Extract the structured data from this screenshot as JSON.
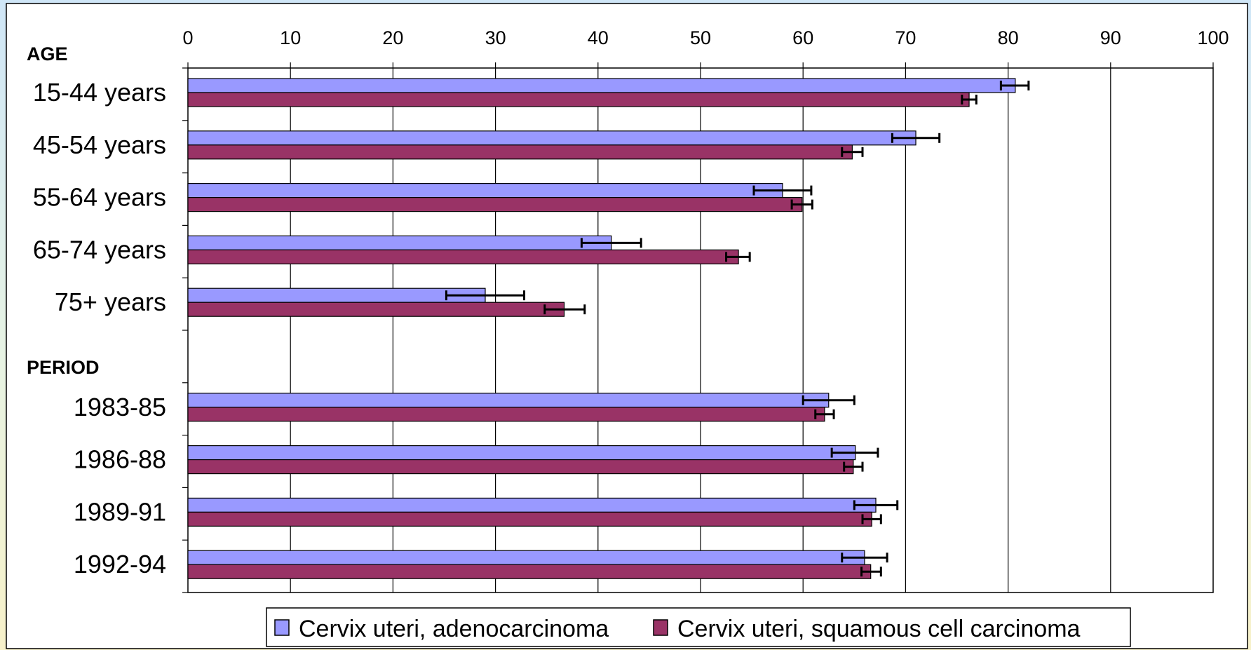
{
  "chart_data": {
    "type": "bar",
    "orientation": "horizontal",
    "x_axis": {
      "min": 0,
      "max": 100,
      "ticks": [
        "0",
        "10",
        "20",
        "30",
        "40",
        "50",
        "60",
        "70",
        "80",
        "90",
        "100"
      ],
      "position": "top",
      "grid": true
    },
    "groups": [
      {
        "label": "AGE",
        "categories": [
          "15-44 years",
          "45-54 years",
          "55-64 years",
          "65-74 years",
          "75+ years"
        ]
      },
      {
        "label": "PERIOD",
        "categories": [
          "1983-85",
          "1986-88",
          "1989-91",
          "1992-94"
        ]
      }
    ],
    "categories": [
      "15-44 years",
      "45-54 years",
      "55-64 years",
      "65-74 years",
      "75+ years",
      "1983-85",
      "1986-88",
      "1989-91",
      "1992-94"
    ],
    "series": [
      {
        "name": "Cervix uteri, adenocarcinoma",
        "color": "#9999ff",
        "values": [
          80.7,
          71.0,
          58.0,
          41.3,
          29.0,
          62.5,
          65.1,
          67.1,
          66.0
        ],
        "error_low": [
          79.3,
          68.7,
          55.2,
          38.4,
          25.2,
          60.0,
          62.8,
          65.0,
          63.8
        ],
        "error_high": [
          82.0,
          73.3,
          60.8,
          44.2,
          32.8,
          65.0,
          67.3,
          69.2,
          68.2
        ]
      },
      {
        "name": "Cervix uteri, squamous cell carcinoma",
        "color": "#993366",
        "values": [
          76.2,
          64.8,
          59.9,
          53.7,
          36.7,
          62.1,
          64.9,
          66.7,
          66.6
        ],
        "error_low": [
          75.5,
          63.8,
          58.9,
          52.5,
          34.8,
          61.2,
          64.0,
          65.8,
          65.7
        ],
        "error_high": [
          76.9,
          65.8,
          60.9,
          54.8,
          38.7,
          63.0,
          65.8,
          67.6,
          67.6
        ]
      }
    ],
    "legend": {
      "position": "bottom-center",
      "entries": [
        "Cervix uteri, adenocarcinoma",
        "Cervix uteri, squamous cell carcinoma"
      ]
    }
  }
}
